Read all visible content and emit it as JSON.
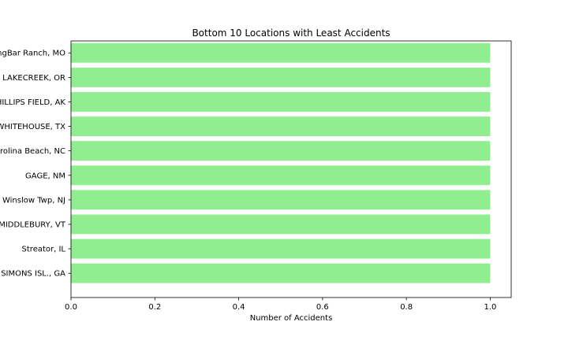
{
  "chart_data": {
    "type": "bar",
    "orientation": "horizontal",
    "title": "Bottom 10 Locations with Least Accidents",
    "xlabel": "Number of Accidents",
    "ylabel": "",
    "categories": [
      "ST SIMONS ISL., GA",
      "Streator, IL",
      "MIDDLEBURY, VT",
      "Winslow Twp, NJ",
      "GAGE, NM",
      "Carolina Beach, NC",
      "WHITEHOUSE, TX",
      "PHILLIPS FIELD, AK",
      "LAKECREEK, OR",
      "LongBar Ranch, MO"
    ],
    "values": [
      1,
      1,
      1,
      1,
      1,
      1,
      1,
      1,
      1,
      1
    ],
    "xlim": [
      0,
      1.05
    ],
    "xticks": [
      0.0,
      0.2,
      0.4,
      0.6,
      0.8,
      1.0
    ],
    "xtick_labels": [
      "0.0",
      "0.2",
      "0.4",
      "0.6",
      "0.8",
      "1.0"
    ],
    "grid": false,
    "bar_color": "#90ee90"
  }
}
